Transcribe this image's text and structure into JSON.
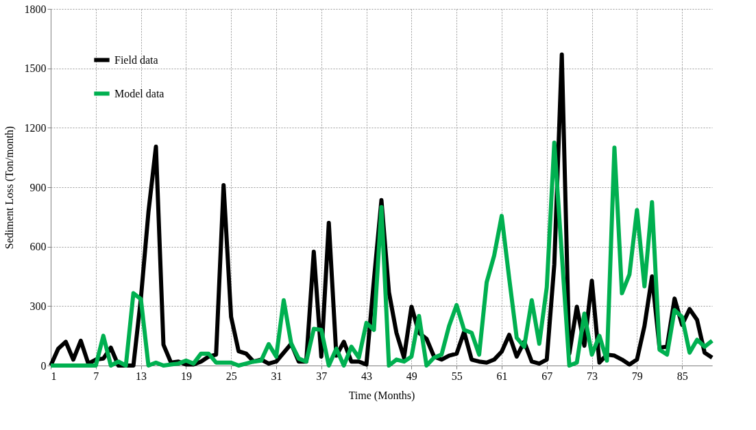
{
  "chart_data": {
    "type": "line",
    "xlabel": "Time (Months)",
    "ylabel": "Sediment Loss (Ton/month)",
    "x": [
      1,
      2,
      3,
      4,
      5,
      6,
      7,
      8,
      9,
      10,
      11,
      12,
      13,
      14,
      15,
      16,
      17,
      18,
      19,
      20,
      21,
      22,
      23,
      24,
      25,
      26,
      27,
      28,
      29,
      30,
      31,
      32,
      33,
      34,
      35,
      36,
      37,
      38,
      39,
      40,
      41,
      42,
      43,
      44,
      45,
      46,
      47,
      48,
      49,
      50,
      51,
      52,
      53,
      54,
      55,
      56,
      57,
      58,
      59,
      60,
      61,
      62,
      63,
      64,
      65,
      66,
      67,
      68,
      69,
      70,
      71,
      72,
      73,
      74,
      75,
      76,
      77,
      78,
      79,
      80,
      81,
      82,
      83,
      84,
      85,
      86,
      87,
      88,
      89
    ],
    "series": [
      {
        "name": "Field data",
        "color": "#000000",
        "values": [
          0,
          85,
          120,
          30,
          125,
          10,
          30,
          35,
          90,
          0,
          0,
          0,
          340,
          774,
          1105,
          105,
          15,
          20,
          5,
          5,
          20,
          45,
          55,
          910,
          245,
          72,
          60,
          20,
          30,
          10,
          20,
          65,
          110,
          20,
          20,
          575,
          45,
          720,
          50,
          120,
          20,
          20,
          5,
          430,
          835,
          370,
          165,
          40,
          297,
          165,
          135,
          45,
          30,
          50,
          60,
          170,
          30,
          20,
          15,
          30,
          70,
          155,
          45,
          120,
          20,
          10,
          30,
          510,
          1570,
          60,
          297,
          100,
          428,
          15,
          55,
          50,
          30,
          5,
          30,
          200,
          450,
          90,
          95,
          338,
          205,
          285,
          230,
          65,
          40
        ]
      },
      {
        "name": "Model data",
        "color": "#00b050",
        "values": [
          0,
          0,
          0,
          0,
          0,
          0,
          0,
          150,
          0,
          20,
          0,
          365,
          335,
          0,
          15,
          0,
          5,
          10,
          25,
          10,
          60,
          60,
          15,
          15,
          15,
          0,
          10,
          20,
          25,
          108,
          45,
          330,
          110,
          35,
          20,
          185,
          180,
          0,
          85,
          0,
          95,
          40,
          215,
          180,
          800,
          0,
          30,
          20,
          45,
          250,
          0,
          40,
          55,
          200,
          305,
          180,
          165,
          55,
          420,
          555,
          755,
          440,
          140,
          95,
          330,
          110,
          395,
          1125,
          560,
          0,
          15,
          262,
          55,
          150,
          25,
          1100,
          365,
          460,
          785,
          400,
          825,
          80,
          55,
          280,
          245,
          65,
          130,
          95,
          125
        ]
      }
    ],
    "xlim": [
      1,
      89
    ],
    "xticks": [
      1,
      7,
      13,
      19,
      25,
      31,
      37,
      43,
      49,
      55,
      61,
      67,
      73,
      79,
      85
    ],
    "ylim": [
      0,
      1800
    ],
    "yticks": [
      0,
      300,
      600,
      900,
      1200,
      1500,
      1800
    ],
    "grid": true,
    "legend": "top left",
    "marker": "none",
    "line_style": "solid"
  }
}
